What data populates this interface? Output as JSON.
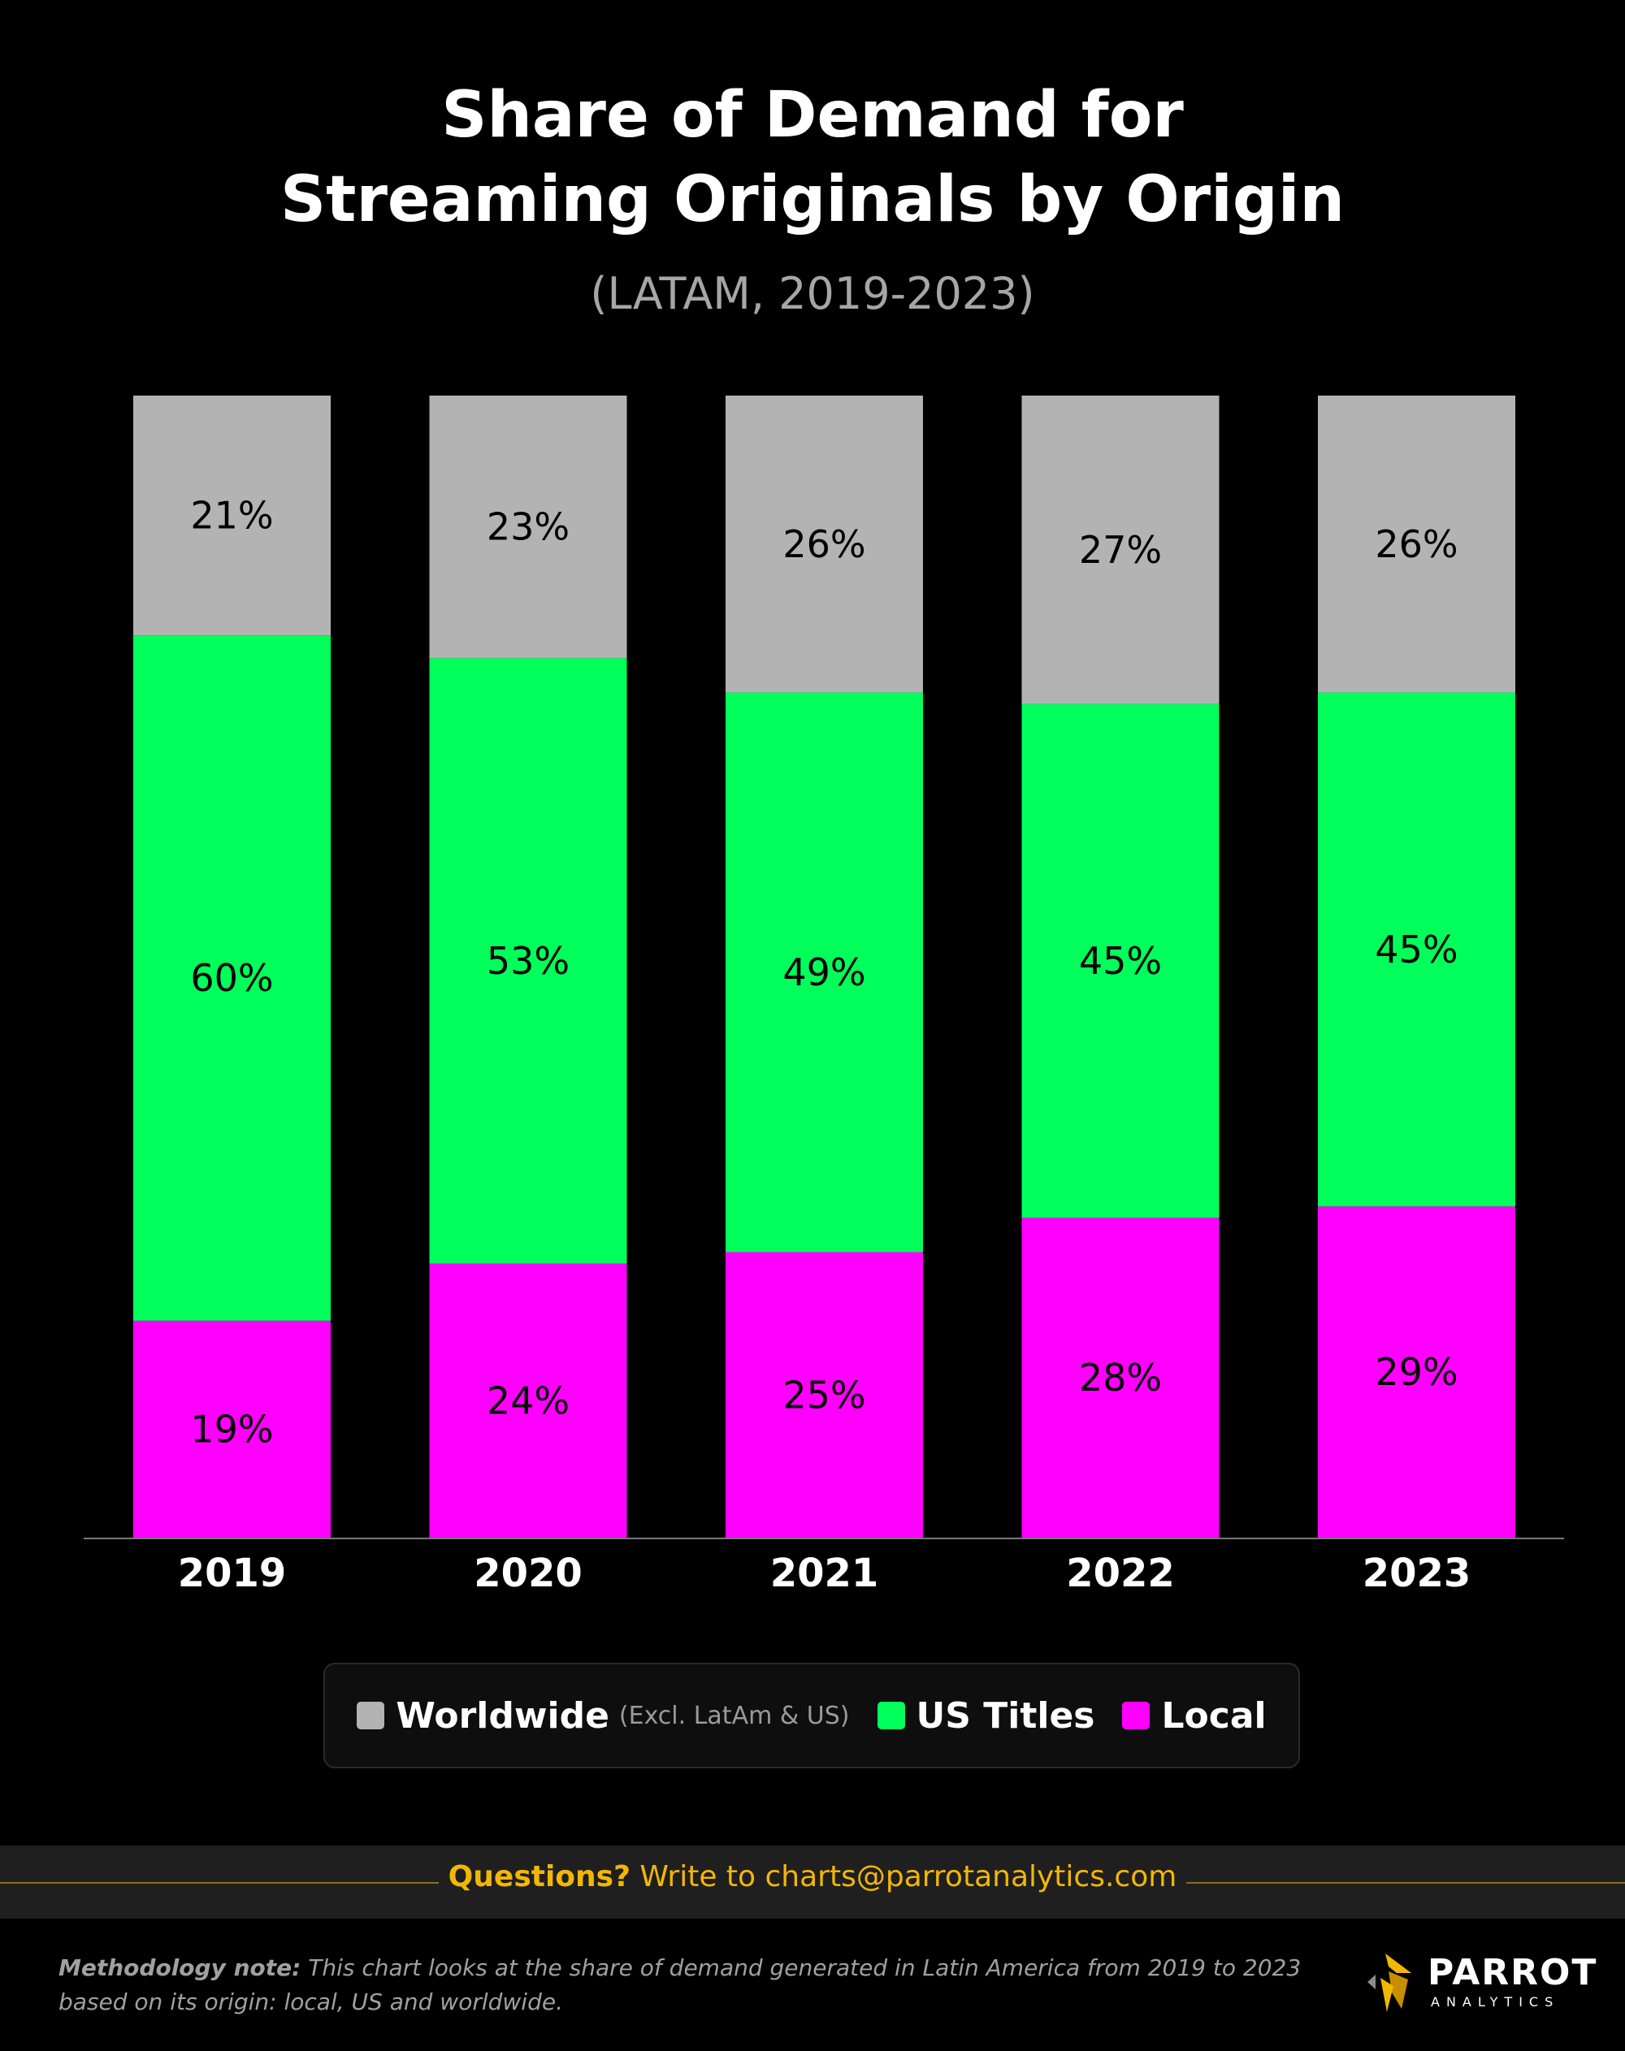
{
  "chart_data": {
    "type": "bar",
    "stacked": true,
    "title": "Share of Demand for\nStreaming Originals by Origin",
    "subtitle": "(LATAM, 2019-2023)",
    "categories": [
      "2019",
      "2020",
      "2021",
      "2022",
      "2023"
    ],
    "ylim": [
      0,
      100
    ],
    "series": [
      {
        "name": "Local",
        "values": [
          19,
          24,
          25,
          28,
          29
        ],
        "labels": [
          "19%",
          "24%",
          "25%",
          "28%",
          "29%"
        ]
      },
      {
        "name": "US Titles",
        "values": [
          60,
          53,
          49,
          45,
          45
        ],
        "labels": [
          "60%",
          "53%",
          "49%",
          "45%",
          "45%"
        ]
      },
      {
        "name": "Worldwide",
        "values": [
          21,
          23,
          26,
          27,
          26
        ],
        "labels": [
          "21%",
          "23%",
          "26%",
          "27%",
          "26%"
        ]
      }
    ],
    "legend_position": "bottom",
    "grid": false
  },
  "colors": {
    "Local": "#ff00ff",
    "US Titles": "#00ff5a",
    "Worldwide": "#b3b3b3",
    "accent": "#f2b705"
  },
  "legend": {
    "worldwide": "Worldwide",
    "worldwide_note": "(Excl. LatAm & US)",
    "us_titles": "US Titles",
    "local": "Local"
  },
  "footer": {
    "question": "Questions?",
    "contact": "Write to charts@parrotanalytics.com",
    "methodology_label": "Methodology note:",
    "methodology_text": "This chart looks at the share of demand generated in Latin America from 2019 to 2023 based on its origin: local, US and worldwide."
  },
  "logo": {
    "name": "PARROT",
    "sub": "ANALYTICS",
    "icon": "parrot-logo-icon"
  }
}
